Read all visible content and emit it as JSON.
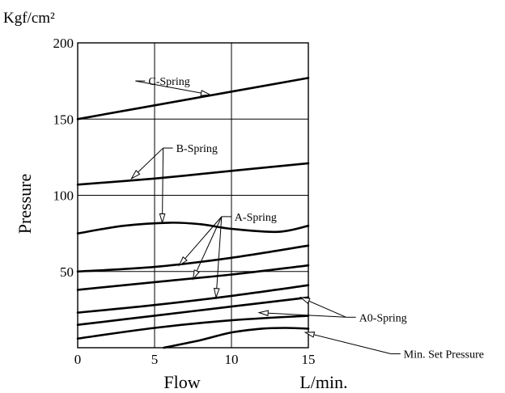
{
  "chart_data": {
    "type": "line",
    "ylabel_unit": "Kgf/cm²",
    "ylabel": "Pressure",
    "xlabel": "Flow",
    "xlabel_unit": "L/min.",
    "xlim": [
      0,
      15
    ],
    "ylim": [
      0,
      200
    ],
    "x_ticks": [
      0,
      5,
      10,
      15
    ],
    "y_ticks": [
      50,
      100,
      150,
      200
    ],
    "grid": true,
    "series": [
      {
        "name": "C-Spring",
        "x": [
          0,
          5,
          10,
          15
        ],
        "y": [
          150,
          159,
          168,
          177
        ]
      },
      {
        "name": "B-Spring",
        "x": [
          0,
          5,
          10,
          15
        ],
        "y": [
          107,
          111,
          116,
          121
        ]
      },
      {
        "name": "A-Spring",
        "x": [
          0,
          3,
          6,
          8,
          10,
          13,
          15
        ],
        "y": [
          75,
          80,
          82,
          81,
          78,
          76,
          80
        ]
      },
      {
        "name": "A-Spring",
        "x": [
          0,
          5,
          10,
          15
        ],
        "y": [
          50,
          53,
          59,
          67
        ]
      },
      {
        "name": "A-Spring",
        "x": [
          0,
          5,
          10,
          15
        ],
        "y": [
          38,
          43,
          48,
          54
        ]
      },
      {
        "name": "A0-Spring",
        "x": [
          0,
          5,
          10,
          15
        ],
        "y": [
          23,
          28,
          34,
          41
        ]
      },
      {
        "name": "A0-Spring",
        "x": [
          0,
          5,
          10,
          15
        ],
        "y": [
          15,
          21,
          27,
          33
        ]
      },
      {
        "name": "A0-Spring",
        "x": [
          0,
          5,
          10,
          15
        ],
        "y": [
          6,
          13,
          18,
          21
        ]
      },
      {
        "name": "Min. Set Pressure",
        "x": [
          5.6,
          8,
          10,
          12,
          13.5,
          15
        ],
        "y": [
          0,
          5,
          10,
          12.5,
          13,
          12.5
        ]
      }
    ],
    "annotations": [
      {
        "text": "C-Spring",
        "label_pos": [
          4.6,
          175
        ],
        "targets": [
          [
            8.6,
            166
          ]
        ]
      },
      {
        "text": "B-Spring",
        "label_pos": [
          6.4,
          131
        ],
        "targets": [
          [
            3.5,
            111
          ],
          [
            5.5,
            82
          ]
        ]
      },
      {
        "text": "A-Spring",
        "label_pos": [
          10.2,
          86
        ],
        "targets": [
          [
            6.6,
            54
          ],
          [
            7.5,
            45
          ],
          [
            9.0,
            33
          ]
        ]
      },
      {
        "text": "A0-Spring",
        "label_pos": [
          18.3,
          20
        ],
        "targets": [
          [
            14.5,
            33
          ],
          [
            11.8,
            23
          ]
        ]
      },
      {
        "text": "Min. Set Pressure",
        "label_pos": [
          21.2,
          -4
        ],
        "targets": [
          [
            14.8,
            10
          ]
        ]
      }
    ]
  }
}
